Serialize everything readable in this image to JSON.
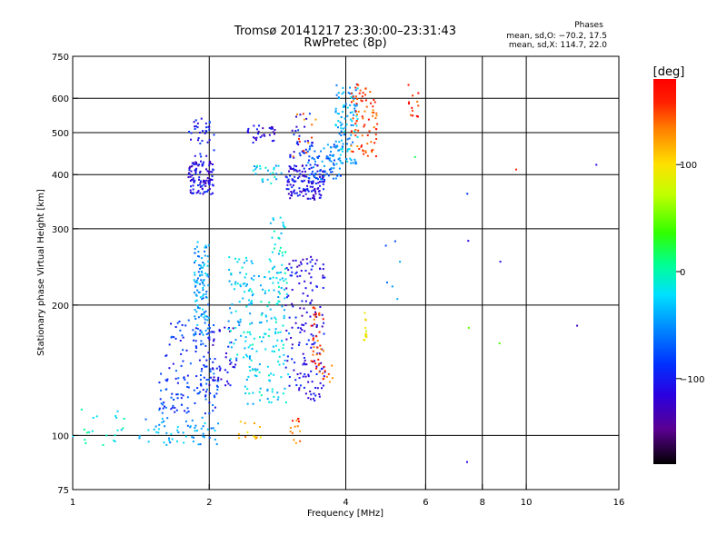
{
  "chart_data": {
    "type": "scatter",
    "title": "Tromsø 20141217 23:30:00–23:31:43",
    "subtitle": "RwPretec (8p)",
    "stats": {
      "heading": "Phases",
      "line1": "mean, sd,O: −70.2, 17.5",
      "line2": "mean, sd,X: 114.7, 22.0"
    },
    "xlabel": "Frequency [MHz]",
    "ylabel": "Stationary phase Virtual Height [km]",
    "xscale": "log",
    "yscale": "log",
    "xlim": [
      1,
      16
    ],
    "ylim": [
      75,
      750
    ],
    "xticks": [
      1,
      2,
      4,
      6,
      8,
      10,
      16
    ],
    "xtick_labels": [
      "1",
      "2",
      "4",
      "6",
      "8",
      "10",
      "16"
    ],
    "xgrid": [
      2,
      4,
      6,
      8,
      10
    ],
    "yticks": [
      75,
      100,
      200,
      300,
      400,
      500,
      600,
      750
    ],
    "ytick_labels": [
      "75",
      "100",
      "200",
      "300",
      "400",
      "500",
      "600",
      "750"
    ],
    "ygrid": [
      100,
      200,
      300,
      400,
      500,
      600
    ],
    "grid": true,
    "colorbar": {
      "label": "[deg]",
      "range": [
        -180,
        180
      ],
      "ticks": [
        100,
        0,
        -100
      ],
      "tick_labels": [
        "100",
        "0",
        "−100"
      ]
    },
    "clusters": [
      {
        "f": [
          1.0,
          1.3
        ],
        "h": [
          93,
          118
        ],
        "phase": -10,
        "n": 22
      },
      {
        "f": [
          1.4,
          2.1
        ],
        "h": [
          95,
          110
        ],
        "phase": -45,
        "n": 60
      },
      {
        "f": [
          1.55,
          2.1
        ],
        "h": [
          112,
          140
        ],
        "phase": -80,
        "n": 90
      },
      {
        "f": [
          1.6,
          2.05
        ],
        "h": [
          140,
          185
        ],
        "phase": -90,
        "n": 60
      },
      {
        "f": [
          1.85,
          2.0
        ],
        "h": [
          170,
          280
        ],
        "phase": -45,
        "n": 110
      },
      {
        "f": [
          1.8,
          2.05
        ],
        "h": [
          360,
          430
        ],
        "phase": -110,
        "n": 110
      },
      {
        "f": [
          1.8,
          2.05
        ],
        "h": [
          440,
          540
        ],
        "phase": -100,
        "n": 35
      },
      {
        "f": [
          2.0,
          2.3
        ],
        "h": [
          130,
          180
        ],
        "phase": -110,
        "n": 45
      },
      {
        "f": [
          2.2,
          2.5
        ],
        "h": [
          150,
          260
        ],
        "phase": -30,
        "n": 70
      },
      {
        "f": [
          2.4,
          3.0
        ],
        "h": [
          118,
          240
        ],
        "phase": -25,
        "n": 150
      },
      {
        "f": [
          2.3,
          2.6
        ],
        "h": [
          98,
          108
        ],
        "phase": 110,
        "n": 14
      },
      {
        "f": [
          2.5,
          2.9
        ],
        "h": [
          380,
          420
        ],
        "phase": -30,
        "n": 25
      },
      {
        "f": [
          2.7,
          2.95
        ],
        "h": [
          220,
          320
        ],
        "phase": -20,
        "n": 35
      },
      {
        "f": [
          2.4,
          2.8
        ],
        "h": [
          470,
          520
        ],
        "phase": -110,
        "n": 30
      },
      {
        "f": [
          3.0,
          3.2
        ],
        "h": [
          95,
          110
        ],
        "phase": 140,
        "n": 14
      },
      {
        "f": [
          2.95,
          3.6
        ],
        "h": [
          120,
          260
        ],
        "phase": -110,
        "n": 170
      },
      {
        "f": [
          3.35,
          3.6
        ],
        "h": [
          140,
          200
        ],
        "phase": 150,
        "n": 35
      },
      {
        "f": [
          3.55,
          3.75
        ],
        "h": [
          130,
          145
        ],
        "phase": 145,
        "n": 10
      },
      {
        "f": [
          2.95,
          3.6
        ],
        "h": [
          350,
          420
        ],
        "phase": -110,
        "n": 140
      },
      {
        "f": [
          3.0,
          3.4
        ],
        "h": [
          430,
          560
        ],
        "phase": -100,
        "n": 35
      },
      {
        "f": [
          3.3,
          3.9
        ],
        "h": [
          390,
          470
        ],
        "phase": -60,
        "n": 70
      },
      {
        "f": [
          3.8,
          4.25
        ],
        "h": [
          420,
          650
        ],
        "phase": -40,
        "n": 110
      },
      {
        "f": [
          3.05,
          3.5
        ],
        "h": [
          440,
          560
        ],
        "phase": 140,
        "n": 12
      },
      {
        "f": [
          4.1,
          4.7
        ],
        "h": [
          440,
          650
        ],
        "phase": 150,
        "n": 80
      },
      {
        "f": [
          4.35,
          4.45
        ],
        "h": [
          165,
          195
        ],
        "phase": 95,
        "n": 12
      },
      {
        "f": [
          4.9,
          5.3
        ],
        "h": [
          200,
          290
        ],
        "phase": -60,
        "n": 6
      },
      {
        "f": [
          5.5,
          5.8
        ],
        "h": [
          540,
          650
        ],
        "phase": 160,
        "n": 14
      },
      {
        "f": [
          5.6,
          5.8
        ],
        "h": [
          430,
          440
        ],
        "phase": 40,
        "n": 1
      },
      {
        "f": [
          7.4,
          7.5
        ],
        "h": [
          360,
          362
        ],
        "phase": -100,
        "n": 1
      },
      {
        "f": [
          7.4,
          7.5
        ],
        "h": [
          280,
          282
        ],
        "phase": -110,
        "n": 1
      },
      {
        "f": [
          7.4,
          7.5
        ],
        "h": [
          176,
          178
        ],
        "phase": 30,
        "n": 1
      },
      {
        "f": [
          7.4,
          7.5
        ],
        "h": [
          86,
          87
        ],
        "phase": -120,
        "n": 1
      },
      {
        "f": [
          8.7,
          8.8
        ],
        "h": [
          250,
          252
        ],
        "phase": -120,
        "n": 1
      },
      {
        "f": [
          8.7,
          8.8
        ],
        "h": [
          162,
          164
        ],
        "phase": 30,
        "n": 1
      },
      {
        "f": [
          9.5,
          9.6
        ],
        "h": [
          410,
          412
        ],
        "phase": 140,
        "n": 1
      },
      {
        "f": [
          12.9,
          13.0
        ],
        "h": [
          178,
          180
        ],
        "phase": -120,
        "n": 1
      },
      {
        "f": [
          14.2,
          14.4
        ],
        "h": [
          420,
          422
        ],
        "phase": -120,
        "n": 1
      }
    ]
  }
}
